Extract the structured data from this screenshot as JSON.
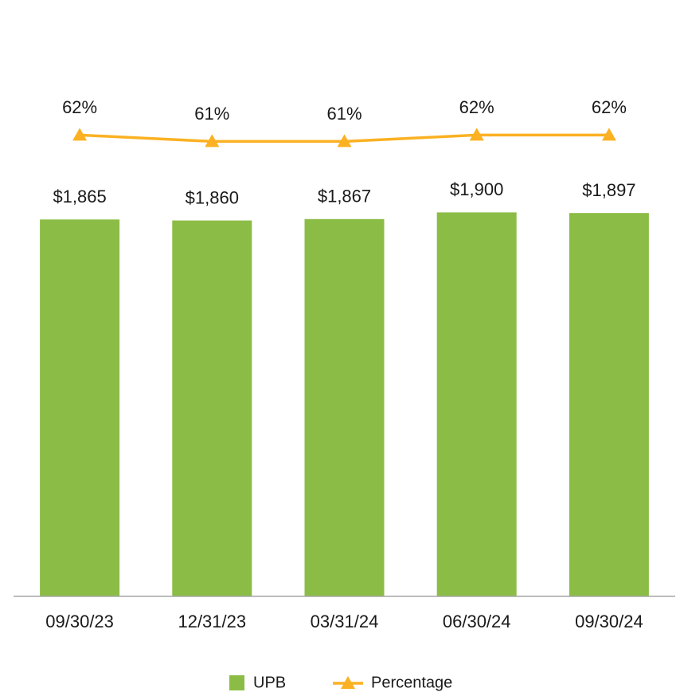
{
  "chart_data": {
    "type": "bar",
    "categories": [
      "09/30/23",
      "12/31/23",
      "03/31/24",
      "06/30/24",
      "09/30/24"
    ],
    "series": [
      {
        "name": "UPB",
        "type": "bar",
        "color": "#8bbc45",
        "values": [
          1865,
          1860,
          1867,
          1900,
          1897
        ],
        "value_labels": [
          "$1,865",
          "$1,860",
          "$1,867",
          "$1,900",
          "$1,897"
        ]
      },
      {
        "name": "Percentage",
        "type": "line",
        "axis": "y2",
        "color": "#fbb122",
        "marker": "triangle",
        "values": [
          62,
          61,
          61,
          62,
          62
        ],
        "value_labels": [
          "62%",
          "61%",
          "61%",
          "62%",
          "62%"
        ]
      }
    ],
    "ylim": [
      0,
      2600
    ],
    "y2lim": [
      -10,
      72
    ],
    "legend": "bottom"
  }
}
